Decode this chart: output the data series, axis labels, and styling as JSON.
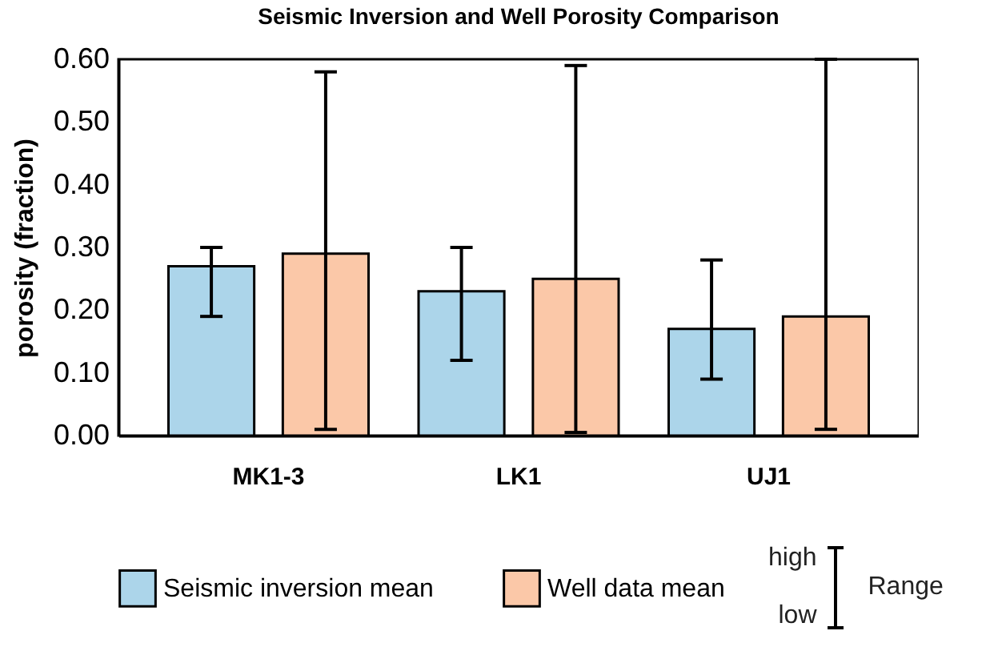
{
  "chart_data": {
    "type": "bar",
    "title": "Seismic Inversion and Well Porosity Comparison",
    "ylabel": "porosity (fraction)",
    "categories": [
      "MK1-3",
      "LK1",
      "UJ1"
    ],
    "series": [
      {
        "name": "Seismic inversion mean",
        "color": "#acd5ea",
        "values": [
          0.27,
          0.23,
          0.17
        ],
        "errors": [
          [
            0.19,
            0.3
          ],
          [
            0.12,
            0.3
          ],
          [
            0.09,
            0.28
          ]
        ]
      },
      {
        "name": "Well data mean",
        "color": "#fbc8a8",
        "values": [
          0.29,
          0.25,
          0.19
        ],
        "errors": [
          [
            0.01,
            0.58
          ],
          [
            0.005,
            0.59
          ],
          [
            0.01,
            0.6
          ]
        ]
      }
    ],
    "ylim": [
      0,
      0.6
    ],
    "yticks": [
      {
        "value": 0,
        "label": "0.00"
      },
      {
        "value": 0.1,
        "label": "0.10"
      },
      {
        "value": 0.2,
        "label": "0.20"
      },
      {
        "value": 0.3,
        "label": "0.30"
      },
      {
        "value": 0.4,
        "label": "0.40"
      },
      {
        "value": 0.5,
        "label": "0.50"
      },
      {
        "value": 0.6,
        "label": "0.60"
      }
    ],
    "grid": false,
    "legend": "bottom",
    "annotations": [
      "high",
      "low",
      "Range"
    ]
  }
}
